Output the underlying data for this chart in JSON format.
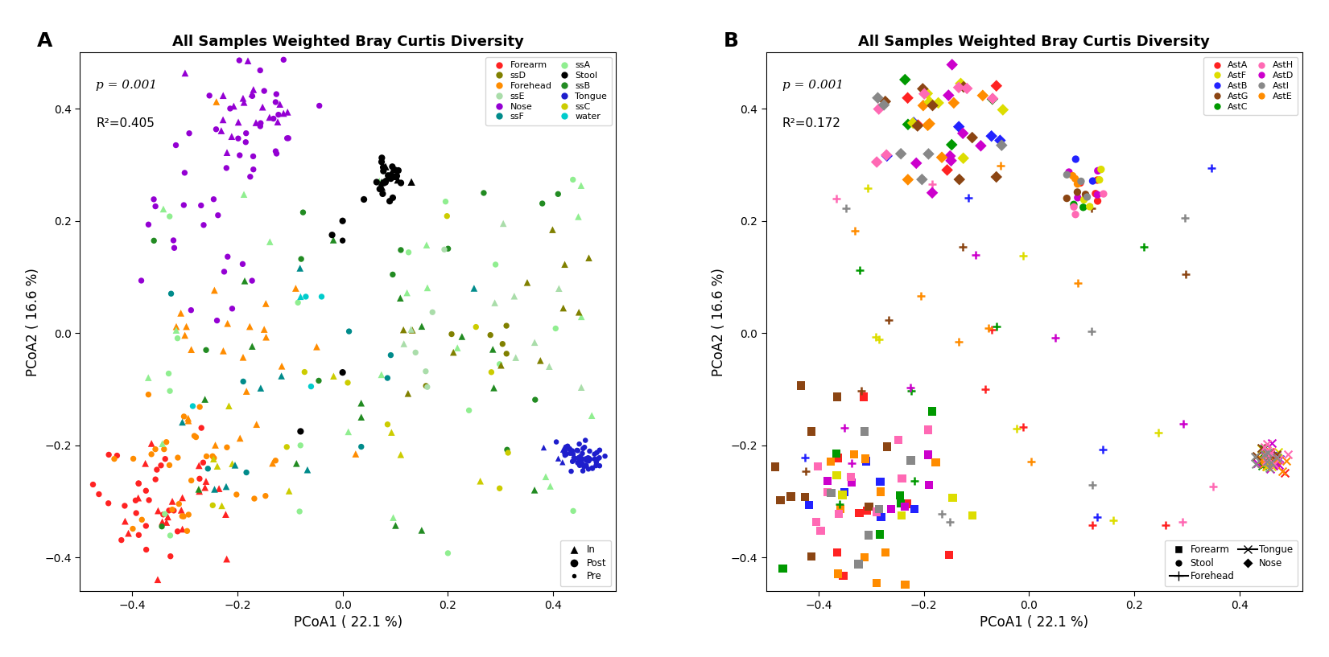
{
  "title": "All Samples Weighted Bray Curtis Diversity",
  "xlabel": "PCoA1 ( 22.1 %)",
  "ylabel": "PCoA2 ( 16.6 %)",
  "xlim": [
    -0.5,
    0.52
  ],
  "ylim": [
    -0.46,
    0.5
  ],
  "panel_A": {
    "p_text": "p = 0.001",
    "r2_text": "R²=0.405",
    "colors": {
      "Forearm": "#FF2222",
      "Forehead": "#FF8C00",
      "Nose": "#9400D3",
      "ssA": "#90EE90",
      "ssB": "#228B22",
      "ssC": "#CCCC00",
      "ssD": "#808000",
      "ssE": "#AADDAA",
      "ssF": "#008B8B",
      "Stool": "#000000",
      "Tongue": "#1E1ECC",
      "water": "#00CCCC"
    }
  },
  "panel_B": {
    "p_text": "p = 0.001",
    "r2_text": "R²=0.172",
    "colors": {
      "AstA": "#FF2222",
      "AstB": "#2222FF",
      "AstC": "#009900",
      "AstD": "#CC00CC",
      "AstE": "#FF8C00",
      "AstF": "#DDDD00",
      "AstG": "#8B4513",
      "AstH": "#FF69B4",
      "AstI": "#888888"
    }
  },
  "seed": 42
}
